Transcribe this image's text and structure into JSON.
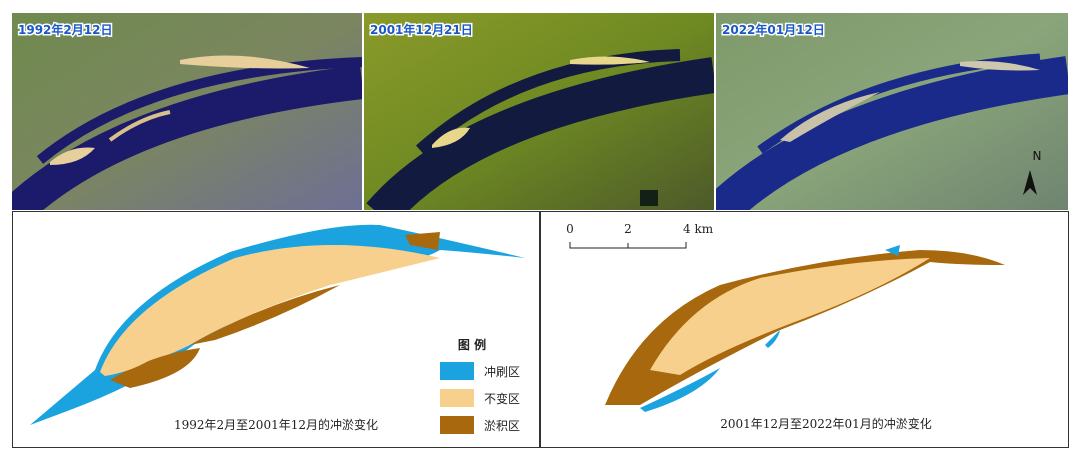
{
  "top_panels": [
    {
      "date_label": "1992年2月12日"
    },
    {
      "date_label": "2001年12月21日"
    },
    {
      "date_label": "2022年01月12日"
    }
  ],
  "north_arrow": "N",
  "scale_bar": {
    "ticks": [
      "0",
      "2",
      "4 km"
    ]
  },
  "legend": {
    "title": "图 例",
    "items": [
      {
        "label": "冲刷区",
        "color": "#1aa3df"
      },
      {
        "label": "不变区",
        "color": "#f8d08e"
      },
      {
        "label": "淤积区",
        "color": "#a8680e"
      }
    ]
  },
  "bottom_panels": [
    {
      "caption": "1992年2月至2001年12月的冲淤变化"
    },
    {
      "caption": "2001年12月至2022年01月的冲淤变化"
    }
  ]
}
